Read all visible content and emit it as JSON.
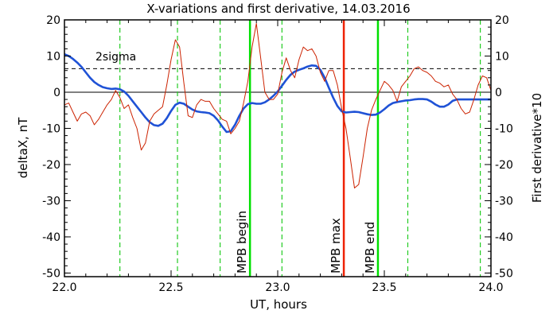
{
  "chart_data": {
    "type": "line",
    "title": "X-variations and first derivative, 14.03.2016",
    "xlabel": "UT, hours",
    "ylabel_left": "deltaX, nT",
    "ylabel_right": "First derivative*10",
    "xlim": [
      22.0,
      24.0
    ],
    "ylim": [
      -51,
      20
    ],
    "x_ticks": [
      "22.0",
      "22.5",
      "23.0",
      "23.5",
      "24.0"
    ],
    "x_tick_values": [
      22.0,
      22.5,
      23.0,
      23.5,
      24.0
    ],
    "y_tick_values": [
      -50,
      -40,
      -30,
      -20,
      -10,
      0,
      10,
      20
    ],
    "y_ticks": [
      "-50",
      "-40",
      "-30",
      "-20",
      "-10",
      "0",
      "10",
      "20"
    ],
    "grid": false,
    "sigma_level": 6.5,
    "sigma_label": "2sigma",
    "colors": {
      "deltaX": "#1f52d6",
      "derivative": "#cc2200",
      "mpb_boundary": "#00e000",
      "mpb_max": "#ee2200",
      "left_label": "#1f52d6",
      "right_label": "#dd2200"
    },
    "series": [
      {
        "key": "deltaX",
        "axis": "left",
        "x": [
          22.0,
          22.02,
          22.04,
          22.06,
          22.08,
          22.1,
          22.12,
          22.14,
          22.16,
          22.18,
          22.2,
          22.22,
          22.24,
          22.26,
          22.28,
          22.3,
          22.32,
          22.34,
          22.36,
          22.38,
          22.4,
          22.42,
          22.44,
          22.46,
          22.48,
          22.5,
          22.52,
          22.54,
          22.56,
          22.58,
          22.6,
          22.62,
          22.64,
          22.66,
          22.68,
          22.7,
          22.72,
          22.74,
          22.76,
          22.78,
          22.8,
          22.82,
          22.84,
          22.86,
          22.88,
          22.9,
          22.92,
          22.94,
          22.96,
          22.98,
          23.0,
          23.02,
          23.04,
          23.06,
          23.08,
          23.1,
          23.12,
          23.14,
          23.16,
          23.18,
          23.2,
          23.22,
          23.24,
          23.26,
          23.28,
          23.3,
          23.32,
          23.34,
          23.36,
          23.38,
          23.4,
          23.42,
          23.44,
          23.46,
          23.48,
          23.5,
          23.52,
          23.54,
          23.56,
          23.58,
          23.6,
          23.62,
          23.64,
          23.66,
          23.68,
          23.7,
          23.72,
          23.74,
          23.76,
          23.78,
          23.8,
          23.82,
          23.84,
          23.86,
          23.88,
          23.9,
          23.92,
          23.94,
          23.96,
          23.98,
          24.0
        ],
        "y": [
          10.5,
          10.0,
          9.2,
          8.2,
          7.0,
          5.5,
          4.0,
          2.8,
          2.0,
          1.4,
          1.1,
          0.9,
          1.0,
          0.8,
          0.2,
          -1.0,
          -2.5,
          -4.0,
          -5.5,
          -7.0,
          -8.3,
          -9.1,
          -9.3,
          -8.7,
          -7.2,
          -5.2,
          -3.5,
          -2.9,
          -3.2,
          -4.0,
          -4.8,
          -5.3,
          -5.5,
          -5.6,
          -5.8,
          -6.5,
          -7.8,
          -9.5,
          -11.0,
          -10.8,
          -9.0,
          -6.5,
          -4.5,
          -3.3,
          -3.0,
          -3.2,
          -3.2,
          -2.8,
          -2.0,
          -1.0,
          0.2,
          1.8,
          3.4,
          4.8,
          5.7,
          6.2,
          6.6,
          7.1,
          7.4,
          7.3,
          6.2,
          4.0,
          1.2,
          -1.5,
          -3.8,
          -5.3,
          -5.6,
          -5.5,
          -5.4,
          -5.5,
          -5.8,
          -6.1,
          -6.3,
          -6.2,
          -5.6,
          -4.7,
          -3.7,
          -3.0,
          -2.7,
          -2.5,
          -2.3,
          -2.2,
          -2.0,
          -1.9,
          -1.9,
          -2.0,
          -2.6,
          -3.4,
          -4.0,
          -4.0,
          -3.4,
          -2.4,
          -2.0,
          -2.0,
          -2.0,
          -2.0,
          -2.0,
          -2.0,
          -2.0,
          -2.0,
          -2.0
        ],
        "x_stride_note": ""
      },
      {
        "key": "derivative",
        "axis": "left",
        "x": [
          22.0,
          22.02,
          22.04,
          22.06,
          22.08,
          22.1,
          22.12,
          22.14,
          22.16,
          22.18,
          22.2,
          22.22,
          22.24,
          22.26,
          22.28,
          22.3,
          22.32,
          22.34,
          22.36,
          22.38,
          22.4,
          22.42,
          22.44,
          22.46,
          22.48,
          22.5,
          22.52,
          22.54,
          22.56,
          22.58,
          22.6,
          22.62,
          22.64,
          22.66,
          22.68,
          22.7,
          22.72,
          22.74,
          22.76,
          22.78,
          22.8,
          22.82,
          22.84,
          22.86,
          22.88,
          22.9,
          22.92,
          22.94,
          22.96,
          22.98,
          23.0,
          23.02,
          23.04,
          23.06,
          23.08,
          23.1,
          23.12,
          23.14,
          23.16,
          23.18,
          23.2,
          23.22,
          23.24,
          23.26,
          23.28,
          23.3,
          23.32,
          23.34,
          23.36,
          23.38,
          23.4,
          23.42,
          23.44,
          23.46,
          23.48,
          23.5,
          23.52,
          23.54,
          23.56,
          23.58,
          23.6,
          23.62,
          23.64,
          23.66,
          23.68,
          23.7,
          23.72,
          23.74,
          23.76,
          23.78,
          23.8,
          23.82,
          23.84,
          23.86,
          23.88,
          23.9,
          23.92,
          23.94,
          23.96,
          23.98,
          24.0
        ],
        "y": [
          -3.5,
          -3.0,
          -5.5,
          -8.0,
          -6.0,
          -5.5,
          -6.5,
          -9.0,
          -7.5,
          -5.5,
          -3.5,
          -2.0,
          0.5,
          -1.5,
          -4.5,
          -3.5,
          -7.0,
          -10.0,
          -16.0,
          -14.0,
          -8.0,
          -6.0,
          -5.0,
          -4.0,
          2.0,
          9.0,
          14.5,
          12.5,
          2.5,
          -6.5,
          -7.0,
          -3.5,
          -2.0,
          -2.5,
          -2.5,
          -4.5,
          -6.0,
          -7.5,
          -8.0,
          -11.5,
          -10.0,
          -8.0,
          -3.0,
          3.0,
          12.5,
          19.0,
          9.5,
          0.0,
          -2.0,
          -2.0,
          -0.5,
          5.5,
          9.5,
          6.0,
          4.0,
          9.0,
          12.5,
          11.5,
          12.0,
          10.0,
          5.5,
          3.0,
          6.0,
          6.0,
          2.0,
          -4.5,
          -10.0,
          -18.0,
          -26.5,
          -25.5,
          -18.0,
          -10.0,
          -5.0,
          -2.0,
          0.5,
          3.0,
          2.0,
          0.5,
          -2.5,
          1.5,
          3.0,
          4.5,
          6.5,
          7.0,
          6.0,
          5.5,
          4.5,
          3.0,
          2.5,
          1.5,
          2.0,
          -0.5,
          -2.0,
          -4.5,
          -6.0,
          -5.5,
          -2.0,
          2.0,
          4.5,
          4.0,
          0.5
        ]
      }
    ],
    "vertical_markers": [
      {
        "key": "sigma_lo",
        "x": 22.26,
        "style": "dashed",
        "color": "#22cc22"
      },
      {
        "key": "a",
        "x": 22.53,
        "style": "dashed",
        "color": "#22cc22"
      },
      {
        "key": "b",
        "x": 22.73,
        "style": "dashed",
        "color": "#22cc22"
      },
      {
        "key": "mpb_begin",
        "x": 22.87,
        "style": "solid",
        "color": "#00e000",
        "label": "MPB begin"
      },
      {
        "key": "c",
        "x": 23.02,
        "style": "dashed",
        "color": "#22cc22"
      },
      {
        "key": "mpb_max",
        "x": 23.31,
        "style": "solid",
        "color": "#ee2200",
        "label": "MPB max"
      },
      {
        "key": "mpb_end",
        "x": 23.47,
        "style": "solid",
        "color": "#00e000",
        "label": "MPB end"
      },
      {
        "key": "d",
        "x": 23.61,
        "style": "dashed",
        "color": "#22cc22"
      },
      {
        "key": "e",
        "x": 23.95,
        "style": "dashed",
        "color": "#22cc22"
      }
    ]
  }
}
